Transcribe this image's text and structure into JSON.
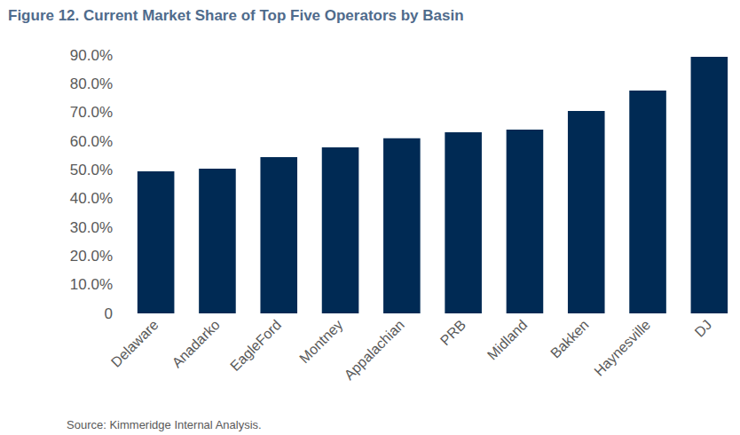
{
  "chart_data": {
    "type": "bar",
    "title": "Figure 12. Current Market Share of Top Five Operators by Basin",
    "annotations": [
      "Source: Kimmeridge Internal Analysis."
    ],
    "categories": [
      "Delaware",
      "Anadarko",
      "EagleFord",
      "Montney",
      "Appalachian",
      "PRB",
      "Midland",
      "Bakken",
      "Haynesville",
      "DJ"
    ],
    "values": [
      49.5,
      50.4,
      54.4,
      57.8,
      61.0,
      63.1,
      64.0,
      70.5,
      77.6,
      89.4
    ],
    "color": "#002a54",
    "ylim": [
      0,
      90
    ],
    "yticks": [
      0,
      {
        "value": 10,
        "label": "10.0%"
      },
      {
        "value": 20,
        "label": "20.0%"
      },
      {
        "value": 30,
        "label": "30.0%"
      },
      {
        "value": 40,
        "label": "40.0%"
      },
      {
        "value": 50,
        "label": "50.0%"
      },
      {
        "value": 60,
        "label": "60.0%"
      },
      {
        "value": 70,
        "label": "70.0%"
      },
      {
        "value": 80,
        "label": "80.0%"
      },
      {
        "value": 90,
        "label": "90.0%"
      }
    ],
    "grid": false
  }
}
